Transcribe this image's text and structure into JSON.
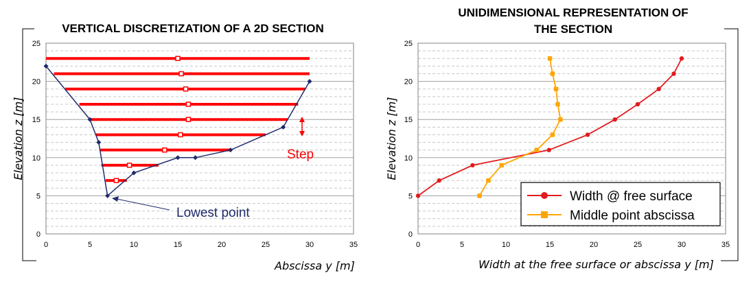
{
  "chart_data": [
    {
      "type": "line",
      "title": "VERTICAL DISCRETIZATION OF A 2D SECTION",
      "xlabel": "Abscissa y [m]",
      "ylabel": "Elevation z [m]",
      "xlim": [
        0,
        35
      ],
      "ylim": [
        0,
        25
      ],
      "xticks": [
        "0",
        "5",
        "10",
        "15",
        "20",
        "25",
        "30",
        "35"
      ],
      "yticks": [
        "0",
        "5",
        "10",
        "15",
        "20",
        "25"
      ],
      "grid": true,
      "series": [
        {
          "color": "#1F2A6B",
          "x": [
            0,
            5,
            6,
            7,
            10,
            15,
            17,
            21,
            27,
            30
          ],
          "y": [
            22,
            15,
            12,
            5,
            8,
            10,
            10,
            11,
            14,
            20
          ]
        }
      ],
      "layers": {
        "color": "#FF0000",
        "z": [
          7,
          9,
          11,
          13,
          15,
          17,
          19,
          21,
          23
        ],
        "x_left": [
          6.8,
          6.3,
          6.2,
          5.7,
          4.9,
          3.8,
          2.2,
          0.9,
          0
        ],
        "x_right": [
          9.2,
          12.8,
          21.1,
          25.0,
          27.5,
          28.7,
          29.5,
          30,
          30
        ],
        "middle_marker_x": [
          8.0,
          9.5,
          13.5,
          15.3,
          16.2,
          16.2,
          15.9,
          15.4,
          15.0
        ]
      },
      "annotations": {
        "step_label": "Step",
        "step_color": "#FF0000",
        "lowest_point_label": "Lowest point",
        "lowest_point_color": "#1F2A6B",
        "lowest_point": [
          7,
          5
        ]
      }
    },
    {
      "type": "line",
      "title": "UNIDIMENSIONAL REPRESENTATION OF",
      "title_line2": "THE SECTION",
      "xlabel": "Width at the free surface or abscissa y [m]",
      "ylabel": "Elevation z [m]",
      "xlim": [
        0,
        35
      ],
      "ylim": [
        0,
        25
      ],
      "xticks": [
        "0",
        "5",
        "10",
        "15",
        "20",
        "25",
        "30",
        "35"
      ],
      "yticks": [
        "0",
        "5",
        "10",
        "15",
        "20",
        "25"
      ],
      "grid": true,
      "legend": "bottom-right",
      "series": [
        {
          "name": "Width @ free surface",
          "color": "#E31A1C",
          "marker": "circle",
          "x": [
            0,
            2.4,
            6.2,
            14.9,
            19.3,
            22.4,
            25.0,
            27.4,
            29.1,
            30.0
          ],
          "y": [
            5,
            7,
            9,
            11,
            13,
            15,
            17,
            19,
            21,
            23
          ]
        },
        {
          "name": "Middle point abscissa",
          "color": "#FFA500",
          "marker": "square",
          "x": [
            7.0,
            8.0,
            9.5,
            13.5,
            15.3,
            16.2,
            15.9,
            15.7,
            15.3,
            15.0
          ],
          "y": [
            5,
            7,
            9,
            11,
            13,
            15,
            17,
            19,
            21,
            23
          ]
        }
      ]
    }
  ]
}
